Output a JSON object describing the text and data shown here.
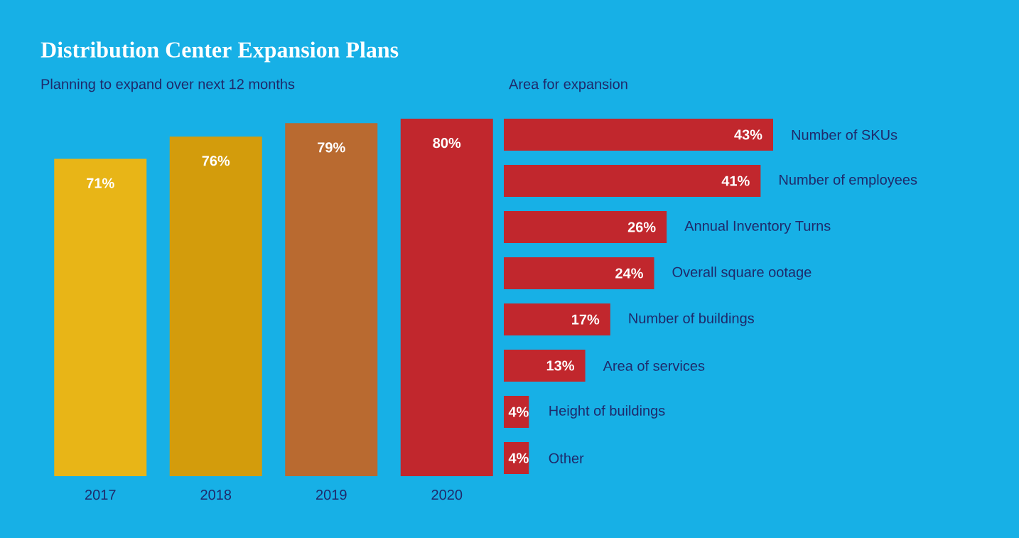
{
  "chart_data": [
    {
      "type": "bar",
      "title": "Distribution Center Expansion Plans",
      "subtitle": "Planning to expand over next 12 months",
      "categories": [
        "2017",
        "2018",
        "2019",
        "2020"
      ],
      "values": [
        71,
        76,
        79,
        80
      ],
      "value_labels": [
        "71%",
        "76%",
        "79%",
        "80%"
      ],
      "colors": [
        "#e8b517",
        "#d39c0c",
        "#b96a30",
        "#c1272d"
      ]
    },
    {
      "type": "bar",
      "orientation": "horizontal",
      "subtitle": "Area for expansion",
      "categories": [
        "Number of SKUs",
        "Number of employees",
        "Annual Inventory Turns",
        "Overall square ootage",
        "Number of buildings",
        "Area of services",
        "Height of buildings",
        "Other"
      ],
      "values": [
        43,
        41,
        26,
        24,
        17,
        13,
        4,
        4
      ],
      "value_labels": [
        "43%",
        "41%",
        "26%",
        "24%",
        "17%",
        "13%",
        "4%",
        "4%"
      ],
      "color": "#c1272d"
    }
  ]
}
